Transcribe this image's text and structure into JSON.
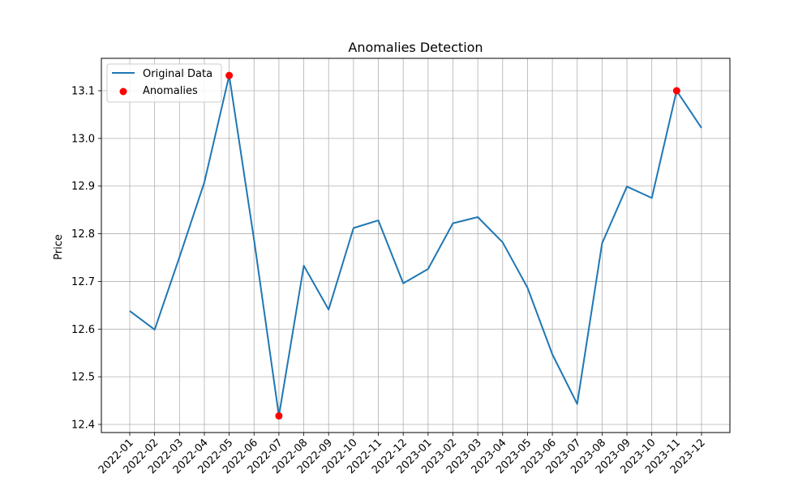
{
  "chart_data": {
    "type": "line",
    "title": "Anomalies Detection",
    "xlabel": "",
    "ylabel": "Price",
    "x": [
      "2022-01",
      "2022-02",
      "2022-03",
      "2022-04",
      "2022-05",
      "2022-06",
      "2022-07",
      "2022-08",
      "2022-09",
      "2022-10",
      "2022-11",
      "2022-12",
      "2023-01",
      "2023-02",
      "2023-03",
      "2023-04",
      "2023-05",
      "2023-06",
      "2023-07",
      "2023-08",
      "2023-09",
      "2023-10",
      "2023-11",
      "2023-12"
    ],
    "series": [
      {
        "name": "Original Data",
        "color": "#1f77b4",
        "values": [
          12.638,
          12.599,
          12.751,
          12.908,
          13.132,
          12.787,
          12.418,
          12.733,
          12.641,
          12.812,
          12.828,
          12.696,
          12.726,
          12.822,
          12.835,
          12.782,
          12.687,
          12.547,
          12.443,
          12.78,
          12.899,
          12.875,
          13.1,
          13.022
        ]
      }
    ],
    "anomalies": {
      "name": "Anomalies",
      "color": "#ff0000",
      "x": [
        "2022-05",
        "2022-07",
        "2023-11"
      ],
      "values": [
        13.132,
        12.418,
        13.1
      ]
    },
    "yticks": [
      12.4,
      12.5,
      12.6,
      12.7,
      12.8,
      12.9,
      13.0,
      13.1
    ],
    "ytick_labels": [
      "12.4",
      "12.5",
      "12.6",
      "12.7",
      "12.8",
      "12.9",
      "13.0",
      "13.1"
    ],
    "ylim": [
      12.383,
      13.168
    ],
    "grid": true,
    "legend_position": "upper-left"
  }
}
